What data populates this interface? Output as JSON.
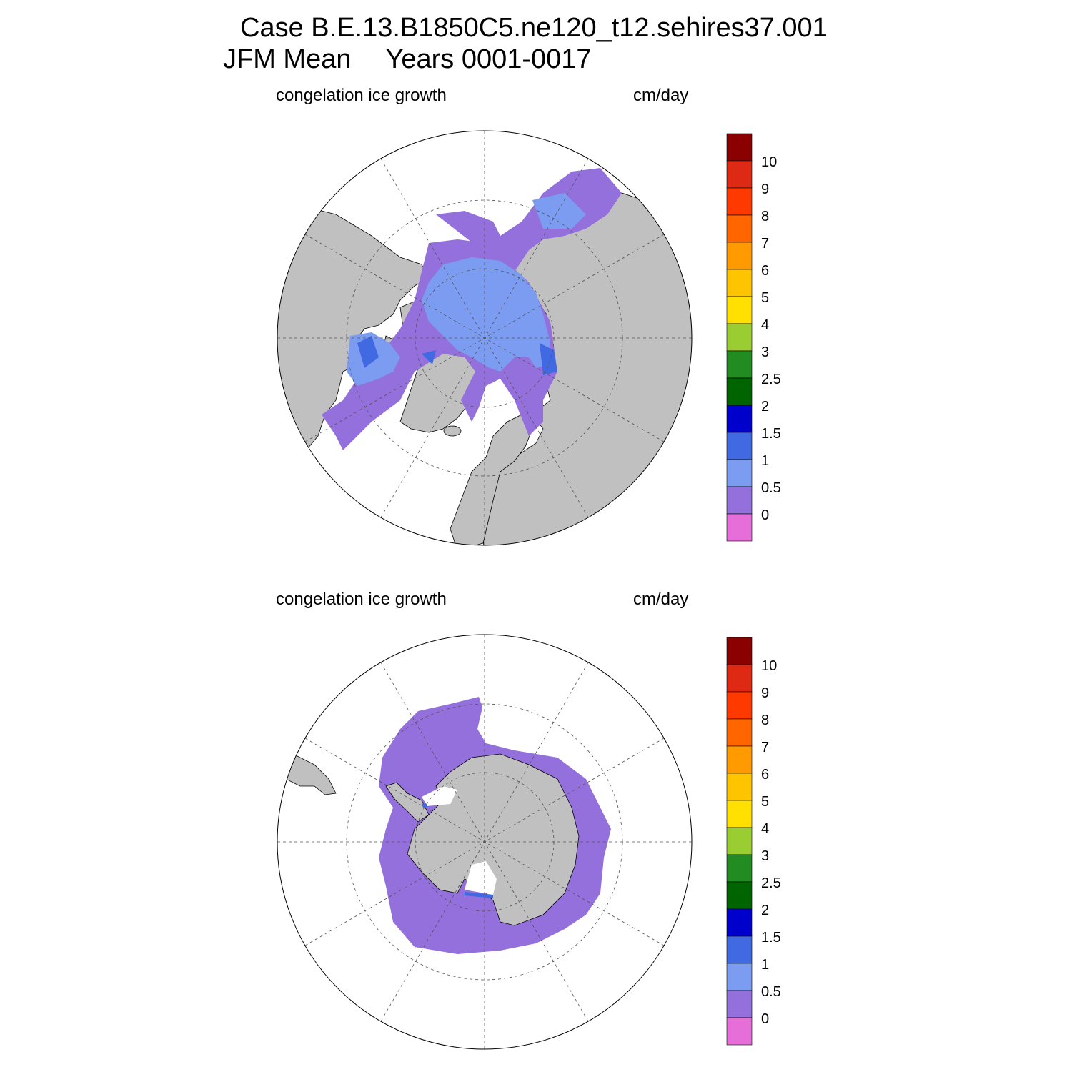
{
  "title": {
    "line1": "Case B.E.13.B1850C5.ne120_t12.sehires37.001",
    "season": "JFM Mean",
    "years": "Years 0001-0017"
  },
  "colors": {
    "land": "#c0c0c0",
    "ocean": "#ffffff",
    "ice_band_0_0p5": "#9370db",
    "ice_band_0p5_1": "#7b9cf0",
    "ice_band_1_1p5": "#4169e1"
  },
  "panels": [
    {
      "name": "north",
      "left_label": "congelation ice growth",
      "right_label": "cm/day"
    },
    {
      "name": "south",
      "left_label": "congelation ice growth",
      "right_label": "cm/day"
    }
  ],
  "colorbar": {
    "colors": [
      "#e66ed9",
      "#9370db",
      "#7b9cf0",
      "#4169e1",
      "#0000cd",
      "#006400",
      "#228b22",
      "#9acd32",
      "#ffe000",
      "#ffc400",
      "#ff9a00",
      "#ff6600",
      "#ff3a00",
      "#de2a14",
      "#8b0000"
    ],
    "labels": [
      "0",
      "0.5",
      "1",
      "1.5",
      "2",
      "2.5",
      "3",
      "4",
      "5",
      "6",
      "7",
      "8",
      "9",
      "10"
    ]
  }
}
